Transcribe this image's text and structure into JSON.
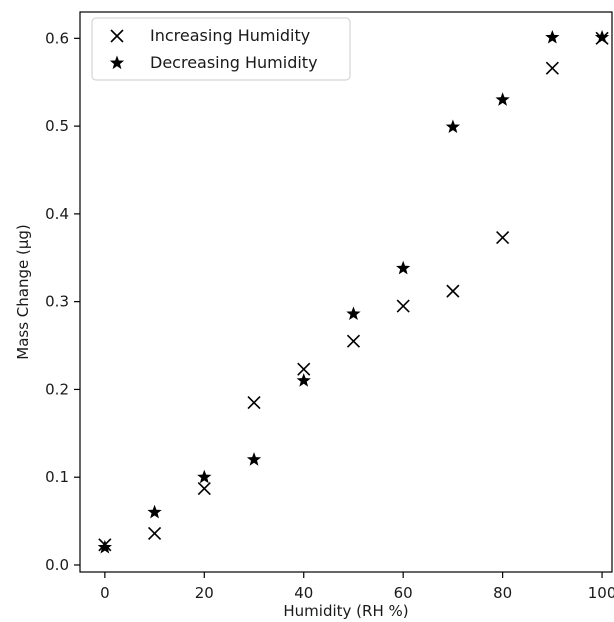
{
  "chart_data": {
    "type": "scatter",
    "title": "",
    "xlabel": "Humidity (RH %)",
    "ylabel": "Mass Change (μg)",
    "xlim": [
      -5,
      102
    ],
    "ylim": [
      -0.008,
      0.63
    ],
    "xticks": [
      0,
      20,
      40,
      60,
      80,
      100
    ],
    "yticks": [
      0.0,
      0.1,
      0.2,
      0.3,
      0.4,
      0.5,
      0.6
    ],
    "xtick_labels": [
      "0",
      "20",
      "40",
      "60",
      "80",
      "100"
    ],
    "ytick_labels": [
      "0.0",
      "0.1",
      "0.2",
      "0.3",
      "0.4",
      "0.5",
      "0.6"
    ],
    "grid": false,
    "legend_position": "top-left",
    "series": [
      {
        "name": "Increasing Humidity",
        "marker": "x",
        "color": "#000000",
        "x": [
          0,
          10,
          20,
          30,
          40,
          50,
          60,
          70,
          80,
          90,
          100
        ],
        "y": [
          0.023,
          0.036,
          0.087,
          0.185,
          0.223,
          0.255,
          0.295,
          0.312,
          0.373,
          0.566,
          0.6
        ]
      },
      {
        "name": "Decreasing Humidity",
        "marker": "star",
        "color": "#000000",
        "x": [
          0,
          10,
          20,
          30,
          40,
          50,
          60,
          70,
          80,
          90,
          100
        ],
        "y": [
          0.02,
          0.06,
          0.1,
          0.12,
          0.21,
          0.286,
          0.338,
          0.499,
          0.53,
          0.601,
          0.601
        ]
      }
    ]
  }
}
